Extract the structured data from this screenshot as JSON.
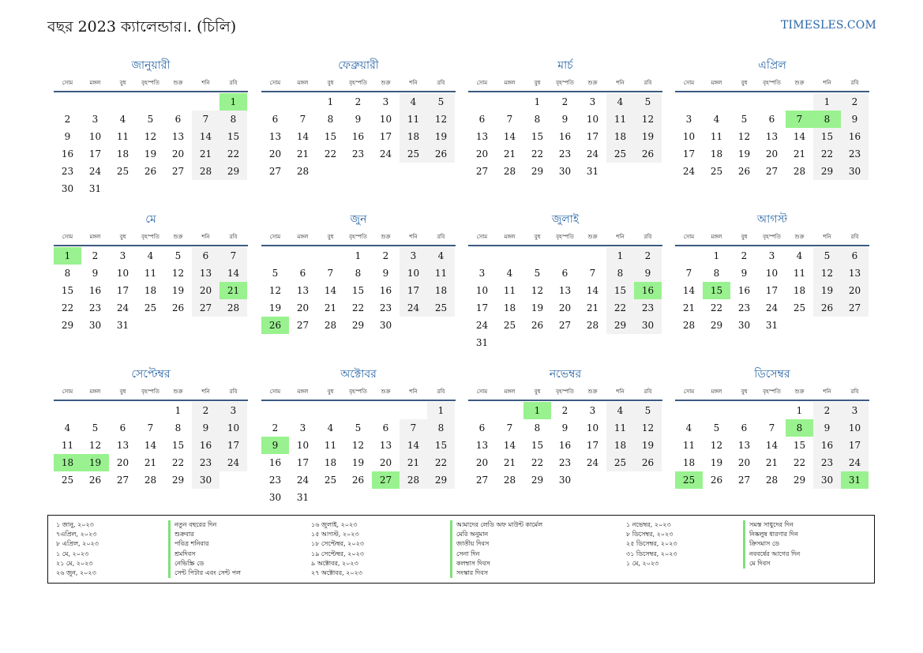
{
  "header": {
    "title": "বছর 2023 ক্যালেন্ডার।. (চিলি)",
    "brand": "TIMESLES.COM"
  },
  "weekdays": [
    "সোম",
    "মঙ্গল",
    "বুধ",
    "বৃহস্পতি",
    "শুক্র",
    "শনি",
    "রবি"
  ],
  "colors": {
    "accent": "#2a66a6",
    "holiday": "#99f28f",
    "weekend": "#f2f2f2",
    "rule": "#3c5a80"
  },
  "months": [
    {
      "name": "জানুয়ারী",
      "offset": 6,
      "days": 31,
      "holidays": [
        1
      ]
    },
    {
      "name": "ফেব্রুয়ারী",
      "offset": 2,
      "days": 28,
      "holidays": []
    },
    {
      "name": "মার্চ",
      "offset": 2,
      "days": 31,
      "holidays": []
    },
    {
      "name": "এপ্রিল",
      "offset": 5,
      "days": 30,
      "holidays": [
        7,
        8
      ]
    },
    {
      "name": "মে",
      "offset": 0,
      "days": 31,
      "holidays": [
        1,
        21
      ]
    },
    {
      "name": "জুন",
      "offset": 3,
      "days": 30,
      "holidays": [
        26
      ]
    },
    {
      "name": "জুলাই",
      "offset": 5,
      "days": 31,
      "holidays": [
        16
      ]
    },
    {
      "name": "আগস্ট",
      "offset": 1,
      "days": 31,
      "holidays": [
        15
      ]
    },
    {
      "name": "সেপ্টেম্বর",
      "offset": 4,
      "days": 30,
      "holidays": [
        18,
        19
      ]
    },
    {
      "name": "অক্টোবর",
      "offset": 6,
      "days": 31,
      "holidays": [
        9,
        27
      ]
    },
    {
      "name": "নভেম্বর",
      "offset": 2,
      "days": 30,
      "holidays": [
        1
      ]
    },
    {
      "name": "ডিসেম্বর",
      "offset": 4,
      "days": 31,
      "holidays": [
        8,
        25,
        31
      ]
    }
  ],
  "holidays_legend": [
    [
      {
        "date": "১ জানু, ২০২৩",
        "name": "নতুন বছরের দিন"
      },
      {
        "date": "৭এপ্রিল, ২০২৩",
        "name": "শুক্রবার"
      },
      {
        "date": "৮ এপ্রিল, ২০২৩",
        "name": "পবিত্র শনিবার"
      },
      {
        "date": "১ মে, ২০২৩",
        "name": "শ্রমদিবস"
      },
      {
        "date": "২১ মে, ২০২৩",
        "name": "নেভিস্ক্রি ডে"
      },
      {
        "date": "২৬ জুন, ২০২৩",
        "name": "সেন্ট পিটার এবং সেন্ট পল"
      }
    ],
    [
      {
        "date": "১৬ জুলাই, ২০২৩",
        "name": "আমাদের লেডি অফ মাউন্ট কার্মেল"
      },
      {
        "date": "১৫ আগস্ট, ২০২৩",
        "name": "মেরি অনুমান"
      },
      {
        "date": "১৮ সেপ্টেম্বর, ২০২৩",
        "name": "জাতীয় দিবস"
      },
      {
        "date": "১৯ সেপ্টেম্বর, ২০২৩",
        "name": "সেনা দিন"
      },
      {
        "date": "৯ অক্টোবর, ২০২৩",
        "name": "কলম্বাস দিবস"
      },
      {
        "date": "২৭ অক্টোবর, ২০২৩",
        "name": "সংস্কার দিবস"
      }
    ],
    [
      {
        "date": "১ নভেম্বর, ২০২৩",
        "name": "সমস্ত সাধুদের দিন"
      },
      {
        "date": "৮ ডিসেম্বর, ২০২৩",
        "name": "নিষ্কলুষ ধারণার দিন"
      },
      {
        "date": "২৫ ডিসেম্বর, ২০২৩",
        "name": "ক্রিসমাস ডে"
      },
      {
        "date": "৩১ ডিসেম্বর, ২০২৩",
        "name": "নববর্ষের আগের দিন"
      },
      {
        "date": "১ মে, ২০২৩",
        "name": "মে দিবস"
      }
    ]
  ]
}
